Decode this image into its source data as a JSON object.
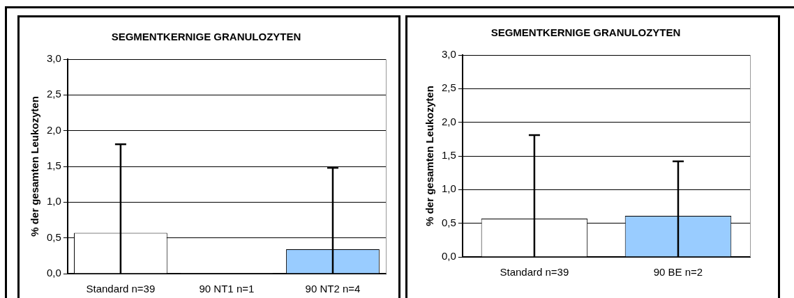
{
  "chart_data": [
    {
      "type": "bar",
      "title": "SEGMENTKERNIGE GRANULOZYTEN",
      "ylabel": "% der gesamten Leukozyten",
      "categories": [
        "Standard n=39",
        "90 NT1 n=1",
        "90 NT2 n=4"
      ],
      "values": [
        0.57,
        0.01,
        0.34
      ],
      "colors": [
        "#ffffff",
        "#ffffff",
        "#99ccff"
      ],
      "errors": [
        [
          0,
          1.81
        ],
        null,
        [
          0,
          1.48
        ]
      ],
      "ylim": [
        0,
        3
      ],
      "yticks": [
        {
          "value": 0,
          "label": "0,0"
        },
        {
          "value": 0.5,
          "label": "0,5"
        },
        {
          "value": 1,
          "label": "1,0"
        },
        {
          "value": 1.5,
          "label": "1,5"
        },
        {
          "value": 2,
          "label": "2,0"
        },
        {
          "value": 2.5,
          "label": "2,5"
        },
        {
          "value": 3,
          "label": "3,0"
        }
      ],
      "grid": "y",
      "legend": false
    },
    {
      "type": "bar",
      "title": "SEGMENTKERNIGE GRANULOZYTEN",
      "ylabel": "% der gesamten Leukozyten",
      "categories": [
        "Standard n=39",
        "90 BE n=2"
      ],
      "values": [
        0.57,
        0.61
      ],
      "colors": [
        "#ffffff",
        "#99ccff"
      ],
      "errors": [
        [
          0,
          1.81
        ],
        [
          0,
          1.42
        ]
      ],
      "ylim": [
        0,
        3
      ],
      "yticks": [
        {
          "value": 0,
          "label": "0,0"
        },
        {
          "value": 0.5,
          "label": "0,5"
        },
        {
          "value": 1,
          "label": "1,0"
        },
        {
          "value": 1.5,
          "label": "1,5"
        },
        {
          "value": 2,
          "label": "2,0"
        },
        {
          "value": 2.5,
          "label": "2,5"
        },
        {
          "value": 3,
          "label": "3,0"
        }
      ],
      "grid": "y",
      "legend": false
    }
  ]
}
